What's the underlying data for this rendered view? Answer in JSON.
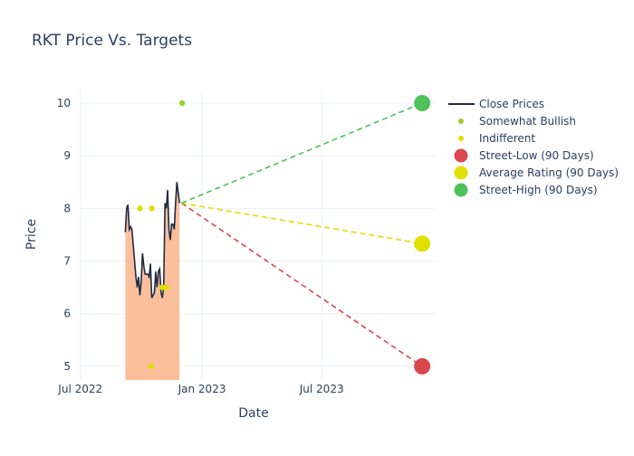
{
  "chart_data": {
    "type": "line",
    "title": "RKT Price Vs. Targets",
    "xlabel": "Date",
    "ylabel": "Price",
    "xlim": [
      "2022-06-30",
      "2023-12-19"
    ],
    "ylim": [
      4.74,
      10.24
    ],
    "grid": true,
    "legend_position": "right",
    "x_ticks": [
      {
        "date": "2022-07-01",
        "label": "Jul 2022"
      },
      {
        "date": "2023-01-01",
        "label": "Jan 2023"
      },
      {
        "date": "2023-07-01",
        "label": "Jul 2023"
      }
    ],
    "y_ticks": [
      5,
      6,
      7,
      8,
      9,
      10
    ],
    "close_prices": {
      "name": "Close Prices",
      "color": "#1f2a44",
      "fill": "#fbbf9b",
      "start": "2022-09-07",
      "step_days": 2,
      "values": [
        7.55,
        8.0,
        8.07,
        7.6,
        7.65,
        7.6,
        7.3,
        7.0,
        6.7,
        6.5,
        6.7,
        6.35,
        6.6,
        7.15,
        6.9,
        6.75,
        6.75,
        6.75,
        6.7,
        6.95,
        6.3,
        6.35,
        6.4,
        6.8,
        6.5,
        6.8,
        6.85,
        6.4,
        6.3,
        6.5,
        8.1,
        8.0,
        8.35,
        7.6,
        7.4,
        7.7,
        7.7,
        7.6,
        8.1,
        8.5,
        8.3,
        8.1
      ]
    },
    "ratings": [
      {
        "name": "Somewhat Bullish",
        "color": "#9acd32",
        "points": [
          {
            "date": "2022-12-02",
            "value": 10
          }
        ]
      },
      {
        "name": "Indifferent",
        "color": "#e0e000",
        "points": [
          {
            "date": "2022-09-29",
            "value": 8
          },
          {
            "date": "2022-10-17",
            "value": 8
          },
          {
            "date": "2022-11-02",
            "value": 6.5
          },
          {
            "date": "2022-11-08",
            "value": 6.5
          },
          {
            "date": "2022-10-16",
            "value": 5
          }
        ]
      }
    ],
    "targets": {
      "from": {
        "date": "2022-12-01",
        "value": 8.1
      },
      "date": "2023-11-30",
      "series": [
        {
          "name": "Street-Low (90 Days)",
          "value": 5,
          "color": "#d9474f"
        },
        {
          "name": "Average Rating (90 Days)",
          "value": 7.33,
          "color": "#e0e000"
        },
        {
          "name": "Street-High (90 Days)",
          "value": 10,
          "color": "#4fc15a"
        }
      ]
    }
  }
}
